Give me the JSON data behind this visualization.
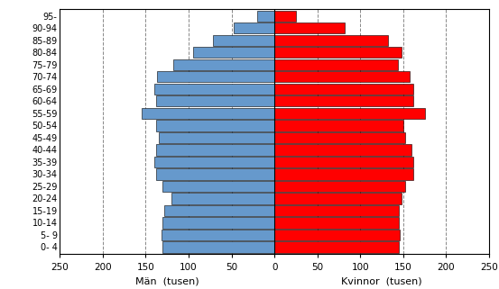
{
  "age_groups": [
    "0- 4",
    "5- 9",
    "10-14",
    "15-19",
    "20-24",
    "25-29",
    "30-34",
    "35-39",
    "40-44",
    "45-49",
    "50-54",
    "55-59",
    "60-64",
    "65-69",
    "70-74",
    "75-79",
    "80-84",
    "85-89",
    "90-94",
    "95-"
  ],
  "men": [
    130,
    132,
    130,
    128,
    120,
    130,
    138,
    140,
    138,
    135,
    138,
    155,
    138,
    140,
    137,
    118,
    95,
    72,
    47,
    20
  ],
  "women": [
    145,
    146,
    145,
    145,
    148,
    152,
    162,
    162,
    160,
    152,
    150,
    175,
    162,
    162,
    158,
    144,
    148,
    132,
    82,
    25
  ],
  "xlim": 250,
  "men_color": "#6699CC",
  "women_color": "#FF0000",
  "bar_edge_color": "#000000",
  "background_color": "#FFFFFF",
  "grid_color": "#888888",
  "xlabel_men": "Män  (tusen)",
  "xlabel_women": "Kvinnor  (tusen)"
}
